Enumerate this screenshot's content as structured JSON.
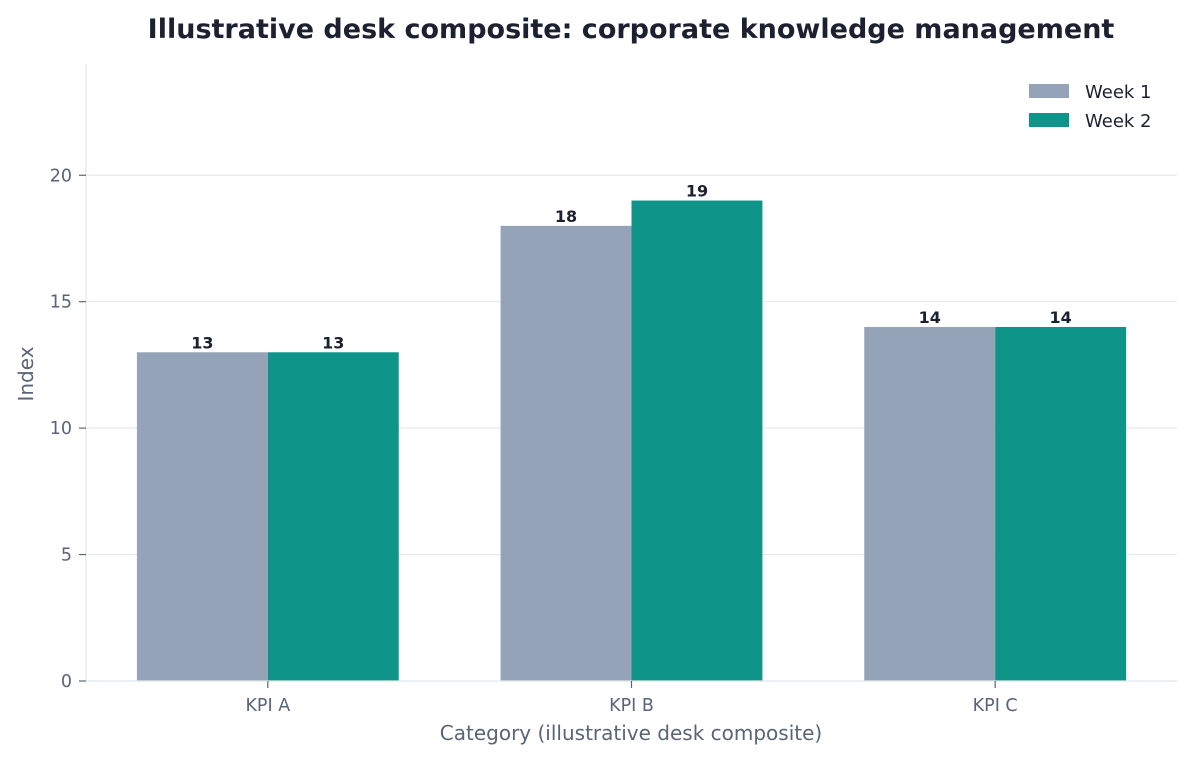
{
  "chart_data": {
    "type": "bar",
    "title": "Illustrative desk composite: corporate knowledge management",
    "xlabel": "Category (illustrative desk composite)",
    "ylabel": "Index",
    "categories": [
      "KPI A",
      "KPI B",
      "KPI C"
    ],
    "series": [
      {
        "name": "Week 1",
        "values": [
          13,
          18,
          14
        ],
        "color": "#95a3b8"
      },
      {
        "name": "Week 2",
        "values": [
          13,
          19,
          14
        ],
        "color": "#0e9488"
      }
    ],
    "ylim": [
      0,
      24.4
    ],
    "yticks": [
      0,
      5,
      10,
      15,
      20
    ],
    "grid": "horizontal",
    "legend_position": "top-right",
    "data_labels": true
  }
}
